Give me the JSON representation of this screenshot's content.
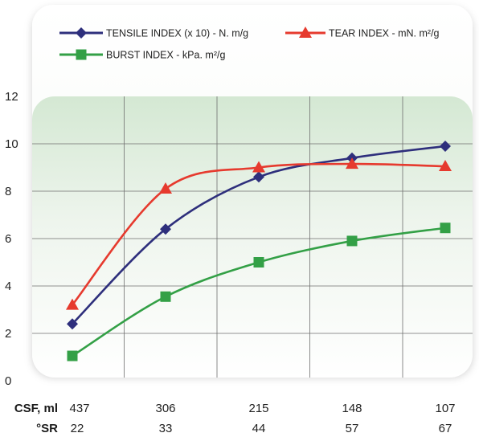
{
  "chart_data": {
    "type": "line",
    "x_row_labels": [
      "CSF, ml",
      "°SR"
    ],
    "categories": [
      "437",
      "306",
      "215",
      "148",
      "107"
    ],
    "sr_values": [
      "22",
      "33",
      "44",
      "57",
      "67"
    ],
    "ylim": [
      0,
      12
    ],
    "y_ticks": [
      "0",
      "2",
      "4",
      "6",
      "8",
      "10",
      "12"
    ],
    "grid": true,
    "legend_position": "top",
    "series": [
      {
        "name": "TENSILE INDEX (x 10) - N. m/g",
        "color": "#2e2f7c",
        "marker": "diamond",
        "values": [
          2.4,
          6.4,
          8.6,
          9.4,
          9.9
        ]
      },
      {
        "name": "TEAR INDEX - mN. m²/g",
        "color": "#e63a2e",
        "marker": "triangle",
        "values": [
          3.2,
          8.1,
          9.0,
          9.15,
          9.05
        ]
      },
      {
        "name": "BURST INDEX - kPa. m²/g",
        "color": "#33a046",
        "marker": "square",
        "values": [
          1.05,
          3.55,
          5.0,
          5.9,
          6.45
        ]
      }
    ]
  }
}
